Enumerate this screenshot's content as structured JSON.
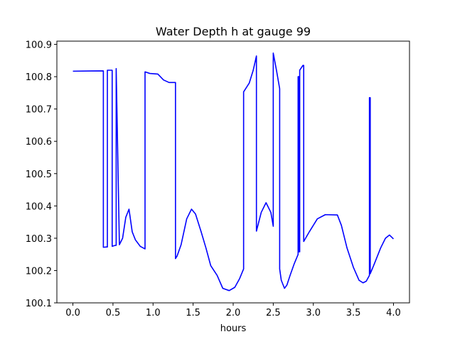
{
  "chart_data": {
    "type": "line",
    "title": "Water Depth h at gauge 99",
    "xlabel": "hours",
    "ylabel": "",
    "xlim": [
      -0.2,
      4.2
    ],
    "ylim": [
      100.1,
      100.91
    ],
    "grid": false,
    "x_ticks": [
      0.0,
      0.5,
      1.0,
      1.5,
      2.0,
      2.5,
      3.0,
      3.5,
      4.0
    ],
    "x_tick_labels": [
      "0.0",
      "0.5",
      "1.0",
      "1.5",
      "2.0",
      "2.5",
      "3.0",
      "3.5",
      "4.0"
    ],
    "y_ticks": [
      100.1,
      100.2,
      100.3,
      100.4,
      100.5,
      100.6,
      100.7,
      100.8,
      100.9
    ],
    "y_tick_labels": [
      "100.1",
      "100.2",
      "100.3",
      "100.4",
      "100.5",
      "100.6",
      "100.7",
      "100.8",
      "100.9"
    ],
    "series": [
      {
        "color": "#0000ff",
        "x": [
          0.0,
          0.38,
          0.38,
          0.42,
          0.43,
          0.43,
          0.49,
          0.49,
          0.53,
          0.54,
          0.54,
          0.58,
          0.62,
          0.66,
          0.7,
          0.74,
          0.78,
          0.84,
          0.9,
          0.9,
          0.96,
          1.06,
          1.13,
          1.2,
          1.28,
          1.28,
          1.3,
          1.35,
          1.42,
          1.48,
          1.53,
          1.6,
          1.66,
          1.72,
          1.8,
          1.87,
          1.95,
          2.02,
          2.08,
          2.13,
          2.13,
          2.2,
          2.25,
          2.29,
          2.29,
          2.35,
          2.41,
          2.47,
          2.5,
          2.5,
          2.54,
          2.58,
          2.58,
          2.6,
          2.64,
          2.67,
          2.71,
          2.76,
          2.81,
          2.81,
          2.82,
          2.82,
          2.83,
          2.83,
          2.87,
          2.88,
          2.88,
          2.95,
          3.05,
          3.15,
          3.3,
          3.35,
          3.42,
          3.5,
          3.57,
          3.62,
          3.66,
          3.7,
          3.7,
          3.71,
          3.71,
          3.76,
          3.84,
          3.9,
          3.95,
          4.0
        ],
        "y": [
          100.817,
          100.818,
          100.272,
          100.273,
          100.273,
          100.82,
          100.82,
          100.275,
          100.278,
          100.278,
          100.825,
          100.28,
          100.3,
          100.365,
          100.39,
          100.32,
          100.295,
          100.275,
          100.267,
          100.815,
          100.81,
          100.808,
          100.79,
          100.782,
          100.782,
          100.237,
          100.245,
          100.28,
          100.36,
          100.39,
          100.375,
          100.32,
          100.27,
          100.215,
          100.185,
          100.145,
          100.138,
          100.148,
          100.175,
          100.205,
          100.753,
          100.78,
          100.82,
          100.864,
          100.322,
          100.38,
          100.41,
          100.38,
          100.337,
          100.873,
          100.82,
          100.763,
          100.205,
          100.17,
          100.145,
          100.155,
          100.185,
          100.22,
          100.25,
          100.8,
          100.8,
          100.258,
          100.258,
          100.82,
          100.835,
          100.835,
          100.29,
          100.32,
          100.36,
          100.373,
          100.372,
          100.34,
          100.27,
          100.21,
          100.17,
          100.162,
          100.167,
          100.185,
          100.735,
          100.735,
          100.19,
          100.22,
          100.27,
          100.3,
          100.31,
          100.298
        ]
      }
    ]
  }
}
